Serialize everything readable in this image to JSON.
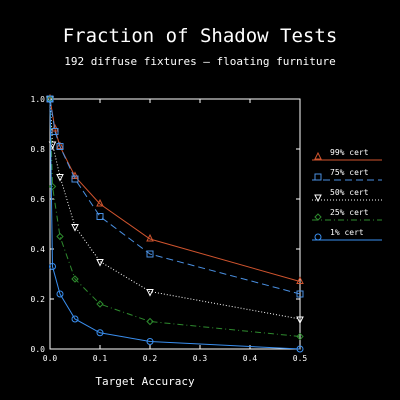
{
  "chart_data": {
    "type": "line",
    "title": "Fraction of Shadow Tests",
    "subtitle": "192 diffuse fixtures — floating furniture",
    "xlabel": "Target Accuracy",
    "ylabel": "",
    "xlim": [
      0,
      0.5
    ],
    "ylim": [
      0,
      1.0
    ],
    "x_ticks": [
      "0.0",
      "0.1",
      "0.2",
      "0.3",
      "0.4",
      "0.5"
    ],
    "y_ticks": [
      "0.0",
      "0.2",
      "0.4",
      "0.6",
      "0.8",
      "1.0"
    ],
    "grid": false,
    "legend_position": "right",
    "background": "#000000",
    "axis_color": "#ffffff",
    "series": [
      {
        "name": "99% cert",
        "color": "#d0542e",
        "marker": "triangle-up",
        "dash": "solid",
        "points": [
          [
            0.0,
            1.0
          ],
          [
            0.01,
            0.88
          ],
          [
            0.02,
            0.81
          ],
          [
            0.05,
            0.69
          ],
          [
            0.1,
            0.58
          ],
          [
            0.2,
            0.44
          ],
          [
            0.5,
            0.27
          ]
        ]
      },
      {
        "name": "75% cert",
        "color": "#4a90e2",
        "marker": "square",
        "dash": "dashed",
        "points": [
          [
            0.0,
            1.0
          ],
          [
            0.01,
            0.87
          ],
          [
            0.02,
            0.81
          ],
          [
            0.05,
            0.68
          ],
          [
            0.1,
            0.53
          ],
          [
            0.2,
            0.38
          ],
          [
            0.5,
            0.22
          ]
        ]
      },
      {
        "name": "50% cert",
        "color": "#ffffff",
        "marker": "triangle-down",
        "dash": "dotted",
        "points": [
          [
            0.0,
            1.0
          ],
          [
            0.005,
            0.82
          ],
          [
            0.02,
            0.69
          ],
          [
            0.05,
            0.49
          ],
          [
            0.1,
            0.35
          ],
          [
            0.2,
            0.23
          ],
          [
            0.5,
            0.12
          ]
        ]
      },
      {
        "name": "25% cert",
        "color": "#2e8b2e",
        "marker": "diamond",
        "dash": "dashdot",
        "points": [
          [
            0.0,
            1.0
          ],
          [
            0.005,
            0.65
          ],
          [
            0.02,
            0.45
          ],
          [
            0.05,
            0.28
          ],
          [
            0.1,
            0.18
          ],
          [
            0.2,
            0.11
          ],
          [
            0.5,
            0.05
          ]
        ]
      },
      {
        "name": "1% cert",
        "color": "#3a8ff0",
        "marker": "circle",
        "dash": "solid",
        "points": [
          [
            0.0,
            1.0
          ],
          [
            0.005,
            0.33
          ],
          [
            0.02,
            0.22
          ],
          [
            0.05,
            0.12
          ],
          [
            0.1,
            0.065
          ],
          [
            0.2,
            0.03
          ],
          [
            0.5,
            0.0
          ]
        ]
      }
    ]
  }
}
